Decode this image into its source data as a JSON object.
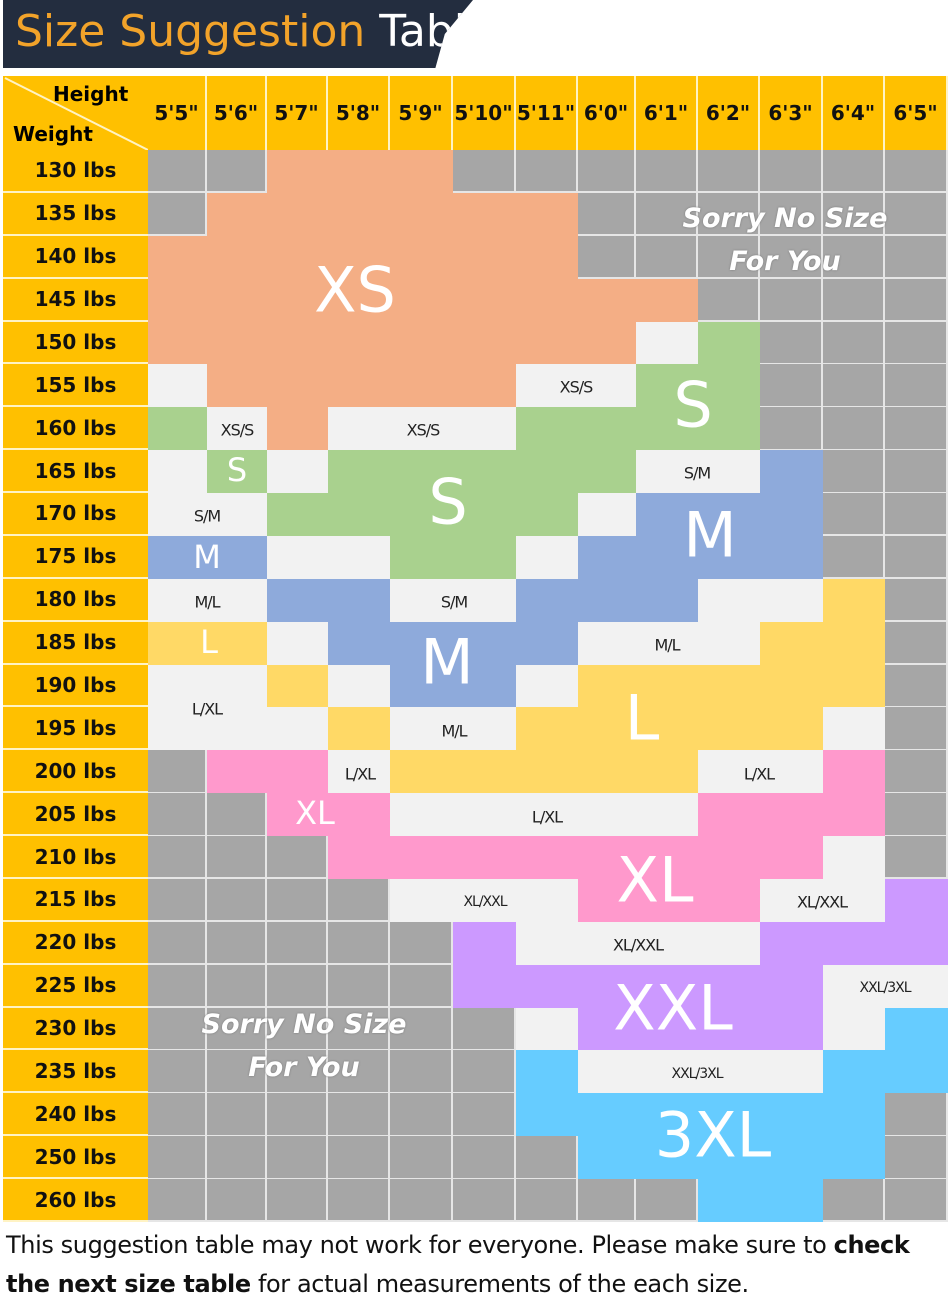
{
  "title": {
    "part1": "Size Suggestion",
    "part2": "Table"
  },
  "corner": {
    "height_label": "Height",
    "weight_label": "Weight"
  },
  "heights": [
    "5'5\"",
    "5'6\"",
    "5'7\"",
    "5'8\"",
    "5'9\"",
    "5'10\"",
    "5'11\"",
    "6'0\"",
    "6'1\"",
    "6'2\"",
    "6'3\"",
    "6'4\"",
    "6'5\""
  ],
  "weights": [
    "130 lbs",
    "135 lbs",
    "140 lbs",
    "145 lbs",
    "150 lbs",
    "155 lbs",
    "160 lbs",
    "165 lbs",
    "170 lbs",
    "175 lbs",
    "180 lbs",
    "185 lbs",
    "190 lbs",
    "195 lbs",
    "200 lbs",
    "205 lbs",
    "210 lbs",
    "215 lbs",
    "220 lbs",
    "225 lbs",
    "230 lbs",
    "235 lbs",
    "240 lbs",
    "250 lbs",
    "260 lbs"
  ],
  "colors": {
    "none": "#a6a6a6",
    "mix": "#f2f2f2",
    "XS": "#f4ae85",
    "S": "#a9d18e",
    "M": "#8eaadb",
    "L": "#ffd966",
    "XL": "#ff99cc",
    "XXL": "#cc99ff",
    "3XL": "#66ccff",
    "header": "#ffc000",
    "title_bg": "#232d3f",
    "title_accent": "#f2a32a"
  },
  "grid": [
    [
      "none",
      "none",
      "XS",
      "XS",
      "XS",
      "none",
      "none",
      "none",
      "none",
      "none",
      "none",
      "none",
      "none"
    ],
    [
      "none",
      "XS",
      "XS",
      "XS",
      "XS",
      "XS",
      "XS",
      "none",
      "none",
      "none",
      "none",
      "none",
      "none"
    ],
    [
      "XS",
      "XS",
      "XS",
      "XS",
      "XS",
      "XS",
      "XS",
      "none",
      "none",
      "none",
      "none",
      "none",
      "none"
    ],
    [
      "XS",
      "XS",
      "XS",
      "XS",
      "XS",
      "XS",
      "XS",
      "XS",
      "XS",
      "none",
      "none",
      "none",
      "none"
    ],
    [
      "XS",
      "XS",
      "XS",
      "XS",
      "XS",
      "XS",
      "XS",
      "XS",
      "mix",
      "S",
      "none",
      "none",
      "none"
    ],
    [
      "mix",
      "XS",
      "XS",
      "XS",
      "XS",
      "XS",
      "mix",
      "mix",
      "S",
      "S",
      "none",
      "none",
      "none"
    ],
    [
      "S",
      "mix",
      "XS",
      "mix",
      "mix",
      "mix",
      "S",
      "S",
      "S",
      "S",
      "none",
      "none",
      "none"
    ],
    [
      "mix",
      "S",
      "mix",
      "S",
      "S",
      "S",
      "S",
      "S",
      "mix",
      "mix",
      "M",
      "none",
      "none"
    ],
    [
      "mix",
      "mix",
      "S",
      "S",
      "S",
      "S",
      "S",
      "mix",
      "M",
      "M",
      "M",
      "none",
      "none"
    ],
    [
      "M",
      "M",
      "mix",
      "mix",
      "S",
      "S",
      "mix",
      "M",
      "M",
      "M",
      "M",
      "none",
      "none"
    ],
    [
      "mix",
      "mix",
      "M",
      "M",
      "mix",
      "mix",
      "M",
      "M",
      "M",
      "mix",
      "mix",
      "L",
      "none"
    ],
    [
      "L",
      "L",
      "mix",
      "M",
      "M",
      "M",
      "M",
      "mix",
      "mix",
      "mix",
      "L",
      "L",
      "none"
    ],
    [
      "mix",
      "mix",
      "L",
      "mix",
      "M",
      "M",
      "mix",
      "L",
      "L",
      "L",
      "L",
      "L",
      "none"
    ],
    [
      "mix",
      "mix",
      "mix",
      "L",
      "mix",
      "mix",
      "L",
      "L",
      "L",
      "L",
      "L",
      "mix",
      "none"
    ],
    [
      "none",
      "XL",
      "XL",
      "mix",
      "L",
      "L",
      "L",
      "L",
      "L",
      "mix",
      "mix",
      "XL",
      "none"
    ],
    [
      "none",
      "none",
      "XL",
      "XL",
      "mix",
      "mix",
      "mix",
      "mix",
      "mix",
      "XL",
      "XL",
      "XL",
      "none"
    ],
    [
      "none",
      "none",
      "none",
      "XL",
      "XL",
      "XL",
      "XL",
      "XL",
      "XL",
      "XL",
      "XL",
      "mix",
      "none"
    ],
    [
      "none",
      "none",
      "none",
      "none",
      "mix",
      "mix",
      "mix",
      "XL",
      "XL",
      "XL",
      "mix",
      "mix",
      "XXL"
    ],
    [
      "none",
      "none",
      "none",
      "none",
      "none",
      "XXL",
      "mix",
      "mix",
      "mix",
      "mix",
      "XXL",
      "XXL",
      "XXL"
    ],
    [
      "none",
      "none",
      "none",
      "none",
      "none",
      "XXL",
      "XXL",
      "XXL",
      "XXL",
      "XXL",
      "XXL",
      "mix",
      "mix"
    ],
    [
      "none",
      "none",
      "none",
      "none",
      "none",
      "none",
      "mix",
      "XXL",
      "XXL",
      "XXL",
      "XXL",
      "mix",
      "3XL"
    ],
    [
      "none",
      "none",
      "none",
      "none",
      "none",
      "none",
      "3XL",
      "mix",
      "mix",
      "mix",
      "mix",
      "3XL",
      "3XL"
    ],
    [
      "none",
      "none",
      "none",
      "none",
      "none",
      "none",
      "3XL",
      "3XL",
      "3XL",
      "3XL",
      "3XL",
      "3XL",
      "none"
    ],
    [
      "none",
      "none",
      "none",
      "none",
      "none",
      "none",
      "none",
      "3XL",
      "3XL",
      "3XL",
      "3XL",
      "3XL",
      "none"
    ],
    [
      "none",
      "none",
      "none",
      "none",
      "none",
      "none",
      "none",
      "none",
      "none",
      "3XL",
      "3XL",
      "none",
      "none"
    ]
  ],
  "labels": {
    "xs": "XS",
    "s1": "S",
    "s2": "S",
    "s3": "S",
    "m1": "M",
    "m2": "M",
    "m3": "M",
    "l1": "L",
    "l2": "L",
    "xl1": "XL",
    "xl2": "XL",
    "xxl": "XXL",
    "x3xl": "3XL",
    "xss1": "XS/S",
    "xss2": "XS/S",
    "xss3": "XS/S",
    "sm1": "S/M",
    "sm2": "S/M",
    "sm3": "S/M",
    "ml1": "M/L",
    "ml2": "M/L",
    "ml3": "M/L",
    "lxl1": "L/XL",
    "lxl2": "L/XL",
    "lxl3": "L/XL",
    "lxl4": "L/XL",
    "xlxxl1": "XL/XXL",
    "xlxxl2": "XL/XXL",
    "xlxxl3": "XL/XXL",
    "xxl3xl1": "XXL/3XL",
    "xxl3xl2": "XXL/3XL",
    "sorry_line1": "Sorry No Size",
    "sorry_line2": "For You"
  },
  "footer": {
    "text1": "This suggestion table may not work for everyone. Please make sure to ",
    "bold": "check the next size table",
    "text2": " for actual measurements of the each size."
  }
}
